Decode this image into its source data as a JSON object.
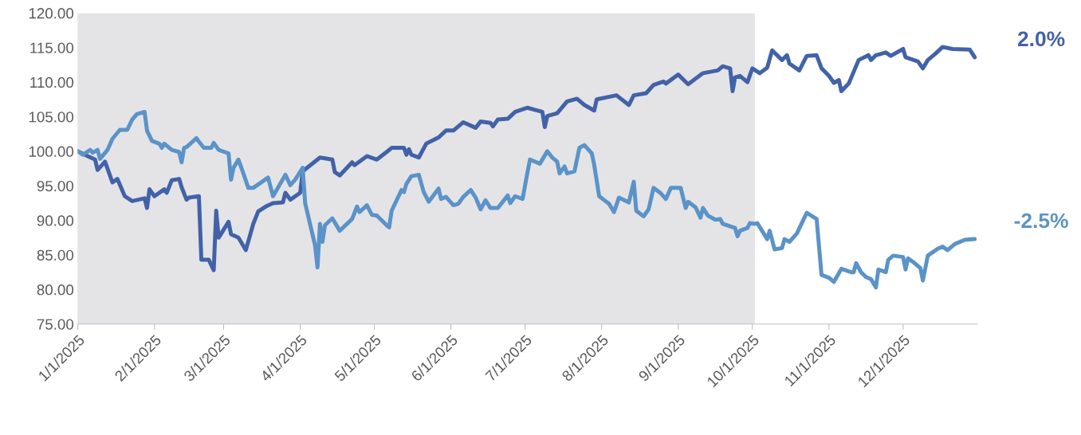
{
  "chart_data": {
    "type": "line",
    "x": [
      "2025-01-01",
      "2025-01-05",
      "2025-01-08",
      "2025-01-09",
      "2025-01-12",
      "2025-01-15",
      "2025-01-17",
      "2025-01-20",
      "2025-01-23",
      "2025-01-28",
      "2025-01-29",
      "2025-01-30",
      "2025-02-01",
      "2025-02-05",
      "2025-02-06",
      "2025-02-08",
      "2025-02-11",
      "2025-02-12",
      "2025-02-14",
      "2025-02-15",
      "2025-02-19",
      "2025-02-20",
      "2025-02-23",
      "2025-02-25",
      "2025-02-26",
      "2025-02-27",
      "2025-03-03",
      "2025-03-04",
      "2025-03-07",
      "2025-03-10",
      "2025-03-13",
      "2025-03-15",
      "2025-03-18",
      "2025-03-21",
      "2025-03-25",
      "2025-03-26",
      "2025-03-28",
      "2025-04-01",
      "2025-04-02",
      "2025-04-09",
      "2025-04-14",
      "2025-04-15",
      "2025-04-17",
      "2025-04-22",
      "2025-04-23",
      "2025-04-28",
      "2025-05-02",
      "2025-05-06",
      "2025-05-08",
      "2025-05-13",
      "2025-05-14",
      "2025-05-15",
      "2025-05-16",
      "2025-05-19",
      "2025-05-22",
      "2025-05-27",
      "2025-05-30",
      "2025-06-02",
      "2025-06-06",
      "2025-06-11",
      "2025-06-13",
      "2025-06-17",
      "2025-06-18",
      "2025-06-20",
      "2025-06-24",
      "2025-06-27",
      "2025-07-02",
      "2025-07-05",
      "2025-07-08",
      "2025-07-09",
      "2025-07-10",
      "2025-07-14",
      "2025-07-18",
      "2025-07-22",
      "2025-07-25",
      "2025-07-29",
      "2025-07-30",
      "2025-08-07",
      "2025-08-12",
      "2025-08-14",
      "2025-08-19",
      "2025-08-22",
      "2025-08-26",
      "2025-08-27",
      "2025-09-01",
      "2025-09-05",
      "2025-09-11",
      "2025-09-17",
      "2025-09-19",
      "2025-09-22",
      "2025-09-23",
      "2025-09-24",
      "2025-09-26",
      "2025-09-29",
      "2025-10-01",
      "2025-10-04",
      "2025-10-07",
      "2025-10-09",
      "2025-10-13",
      "2025-10-15",
      "2025-10-16",
      "2025-10-20",
      "2025-10-23",
      "2025-10-27",
      "2025-10-29",
      "2025-11-01",
      "2025-11-03",
      "2025-11-05",
      "2025-11-06",
      "2025-11-09",
      "2025-11-13",
      "2025-11-17",
      "2025-11-18",
      "2025-11-20",
      "2025-11-24",
      "2025-11-26",
      "2025-12-01",
      "2025-12-02",
      "2025-12-07",
      "2025-12-09",
      "2025-12-11",
      "2025-12-14",
      "2025-12-17",
      "2025-12-21",
      "2025-12-28",
      "2025-12-30"
    ],
    "series": [
      {
        "color": "#4262a8",
        "values": [
          100.0,
          99.3,
          98.8,
          97.3,
          98.5,
          95.5,
          96.0,
          93.5,
          92.8,
          93.2,
          91.8,
          94.5,
          93.5,
          94.5,
          94.0,
          95.8,
          96.0,
          94.8,
          93.0,
          93.3,
          93.5,
          84.3,
          84.3,
          82.8,
          91.4,
          87.5,
          89.8,
          88.0,
          87.5,
          85.7,
          89.5,
          91.3,
          92.0,
          92.5,
          92.6,
          94.0,
          93.0,
          94.0,
          97.1,
          99.1,
          98.8,
          97.0,
          96.5,
          98.4,
          98.0,
          99.3,
          98.8,
          99.9,
          100.5,
          100.5,
          99.5,
          100.3,
          99.5,
          99.1,
          101.1,
          102.0,
          103.0,
          103.0,
          104.2,
          103.4,
          104.3,
          104.1,
          103.6,
          104.6,
          104.7,
          105.7,
          106.3,
          106.0,
          105.7,
          103.5,
          105.1,
          105.5,
          107.2,
          107.6,
          106.7,
          105.9,
          107.5,
          108.1,
          106.7,
          108.1,
          108.4,
          109.6,
          110.1,
          109.8,
          111.1,
          109.7,
          111.3,
          111.7,
          112.3,
          112.0,
          108.7,
          110.7,
          110.9,
          110.0,
          112.0,
          111.3,
          112.1,
          114.6,
          113.2,
          113.9,
          112.7,
          111.7,
          113.8,
          113.9,
          112.0,
          110.9,
          109.9,
          110.3,
          108.7,
          109.8,
          113.2,
          113.9,
          113.2,
          113.9,
          114.3,
          113.8,
          114.8,
          113.6,
          113.0,
          112.0,
          113.2,
          114.1,
          115.1,
          114.8,
          114.7,
          113.6
        ]
      },
      {
        "color": "#5b93c8",
        "x": [
          "2025-01-01",
          "2025-01-03",
          "2025-01-06",
          "2025-01-07",
          "2025-01-09",
          "2025-01-10",
          "2025-01-13",
          "2025-01-15",
          "2025-01-18",
          "2025-01-21",
          "2025-01-23",
          "2025-01-25",
          "2025-01-28",
          "2025-01-29",
          "2025-01-31",
          "2025-02-03",
          "2025-02-04",
          "2025-02-05",
          "2025-02-08",
          "2025-02-11",
          "2025-02-12",
          "2025-02-13",
          "2025-02-14",
          "2025-02-18",
          "2025-02-19",
          "2025-02-21",
          "2025-02-24",
          "2025-02-25",
          "2025-02-27",
          "2025-03-03",
          "2025-03-04",
          "2025-03-05",
          "2025-03-07",
          "2025-03-09",
          "2025-03-11",
          "2025-03-13",
          "2025-03-19",
          "2025-03-21",
          "2025-03-26",
          "2025-03-28",
          "2025-03-30",
          "2025-04-02",
          "2025-04-03",
          "2025-04-07",
          "2025-04-08",
          "2025-04-09",
          "2025-04-10",
          "2025-04-11",
          "2025-04-14",
          "2025-04-17",
          "2025-04-22",
          "2025-04-24",
          "2025-04-25",
          "2025-04-28",
          "2025-04-30",
          "2025-05-02",
          "2025-05-06",
          "2025-05-07",
          "2025-05-08",
          "2025-05-12",
          "2025-05-13",
          "2025-05-14",
          "2025-05-16",
          "2025-05-19",
          "2025-05-21",
          "2025-05-23",
          "2025-05-27",
          "2025-05-28",
          "2025-05-30",
          "2025-06-02",
          "2025-06-04",
          "2025-06-06",
          "2025-06-09",
          "2025-06-11",
          "2025-06-13",
          "2025-06-15",
          "2025-06-17",
          "2025-06-20",
          "2025-06-24",
          "2025-06-25",
          "2025-06-27",
          "2025-06-30",
          "2025-07-02",
          "2025-07-03",
          "2025-07-07",
          "2025-07-10",
          "2025-07-12",
          "2025-07-14",
          "2025-07-15",
          "2025-07-17",
          "2025-07-18",
          "2025-07-21",
          "2025-07-23",
          "2025-07-25",
          "2025-07-28",
          "2025-07-29",
          "2025-07-31",
          "2025-08-04",
          "2025-08-06",
          "2025-08-08",
          "2025-08-12",
          "2025-08-14",
          "2025-08-15",
          "2025-08-18",
          "2025-08-20",
          "2025-08-22",
          "2025-08-25",
          "2025-08-27",
          "2025-08-29",
          "2025-09-02",
          "2025-09-04",
          "2025-09-05",
          "2025-09-08",
          "2025-09-10",
          "2025-09-11",
          "2025-09-13",
          "2025-09-16",
          "2025-09-18",
          "2025-09-19",
          "2025-09-24",
          "2025-09-25",
          "2025-09-26",
          "2025-09-29",
          "2025-09-30",
          "2025-10-02",
          "2025-10-03",
          "2025-10-07",
          "2025-10-08",
          "2025-10-10",
          "2025-10-13",
          "2025-10-14",
          "2025-10-16",
          "2025-10-19",
          "2025-10-21",
          "2025-10-23",
          "2025-10-27",
          "2025-10-29",
          "2025-11-01",
          "2025-11-03",
          "2025-11-06",
          "2025-11-10",
          "2025-11-11",
          "2025-11-12",
          "2025-11-14",
          "2025-11-16",
          "2025-11-18",
          "2025-11-20",
          "2025-11-21",
          "2025-11-24",
          "2025-11-25",
          "2025-11-27",
          "2025-12-01",
          "2025-12-02",
          "2025-12-03",
          "2025-12-05",
          "2025-12-08",
          "2025-12-09",
          "2025-12-11",
          "2025-12-15",
          "2025-12-17",
          "2025-12-19",
          "2025-12-22",
          "2025-12-26",
          "2025-12-30"
        ],
        "values": [
          100.0,
          99.5,
          100.2,
          99.8,
          100.2,
          98.9,
          100.2,
          101.8,
          103.1,
          103.1,
          104.6,
          105.4,
          105.7,
          103.0,
          101.5,
          101.1,
          100.5,
          101.1,
          100.2,
          99.9,
          98.4,
          100.5,
          100.6,
          101.9,
          101.4,
          100.5,
          100.5,
          101.2,
          100.2,
          99.7,
          95.9,
          97.6,
          98.8,
          96.8,
          94.7,
          94.7,
          96.2,
          93.5,
          96.6,
          95.1,
          95.9,
          97.6,
          92.5,
          86.4,
          83.2,
          89.5,
          86.9,
          89.3,
          90.3,
          88.5,
          90.2,
          92.0,
          91.2,
          92.2,
          90.8,
          90.7,
          89.3,
          89.0,
          91.4,
          94.4,
          94.1,
          95.3,
          96.4,
          96.6,
          94.1,
          92.7,
          94.6,
          93.1,
          93.4,
          92.2,
          92.4,
          93.4,
          94.4,
          93.3,
          91.6,
          92.9,
          91.8,
          91.8,
          93.6,
          92.5,
          93.5,
          93.1,
          97.0,
          98.8,
          98.2,
          100.0,
          99.1,
          98.5,
          96.8,
          97.8,
          96.8,
          97.1,
          100.5,
          100.9,
          99.7,
          98.0,
          93.5,
          92.4,
          91.2,
          93.3,
          92.6,
          95.6,
          91.4,
          90.6,
          91.6,
          94.7,
          93.9,
          93.1,
          94.7,
          94.7,
          91.8,
          92.7,
          91.9,
          90.4,
          91.8,
          90.7,
          90.1,
          90.2,
          89.5,
          88.9,
          87.7,
          88.5,
          88.9,
          89.6,
          89.5,
          89.6,
          87.3,
          88.5,
          85.8,
          86.0,
          87.3,
          86.9,
          88.1,
          89.6,
          91.1,
          90.2,
          82.1,
          81.7,
          81.1,
          83.0,
          82.5,
          82.5,
          83.8,
          82.5,
          81.8,
          81.5,
          80.3,
          82.9,
          82.5,
          84.3,
          84.9,
          84.7,
          82.9,
          84.5,
          84.0,
          83.1,
          81.3,
          84.9,
          85.9,
          86.2,
          85.7,
          86.6,
          87.2,
          87.3
        ]
      }
    ],
    "annotations": [
      "2.0%",
      "-2.5%"
    ],
    "bands": [
      {
        "axis": "x",
        "from": "2025-01-01",
        "to": "2025-10-02",
        "color": "#e4e4e7"
      }
    ],
    "xlim": [
      "2025-01-01",
      "2025-12-31"
    ],
    "xticks": [
      {
        "value": "2025-01-01",
        "label": "1/1/2025"
      },
      {
        "value": "2025-02-01",
        "label": "2/1/2025"
      },
      {
        "value": "2025-03-01",
        "label": "3/1/2025"
      },
      {
        "value": "2025-04-01",
        "label": "4/1/2025"
      },
      {
        "value": "2025-05-01",
        "label": "5/1/2025"
      },
      {
        "value": "2025-06-01",
        "label": "6/1/2025"
      },
      {
        "value": "2025-07-01",
        "label": "7/1/2025"
      },
      {
        "value": "2025-08-01",
        "label": "8/1/2025"
      },
      {
        "value": "2025-09-01",
        "label": "9/1/2025"
      },
      {
        "value": "2025-10-01",
        "label": "10/1/2025"
      },
      {
        "value": "2025-11-01",
        "label": "11/1/2025"
      },
      {
        "value": "2025-12-01",
        "label": "12/1/2025"
      }
    ],
    "ylim": [
      75,
      120
    ],
    "yticks": [
      {
        "value": 75,
        "label": "75.00"
      },
      {
        "value": 80,
        "label": "80.00"
      },
      {
        "value": 85,
        "label": "85.00"
      },
      {
        "value": 90,
        "label": "90.00"
      },
      {
        "value": 95,
        "label": "95.00"
      },
      {
        "value": 100,
        "label": "100.00"
      },
      {
        "value": 105,
        "label": "105.00"
      },
      {
        "value": 110,
        "label": "110.00"
      },
      {
        "value": 115,
        "label": "115.00"
      },
      {
        "value": 120,
        "label": "120.00"
      }
    ],
    "grid": false,
    "line_style": "solid",
    "marker": "none"
  }
}
